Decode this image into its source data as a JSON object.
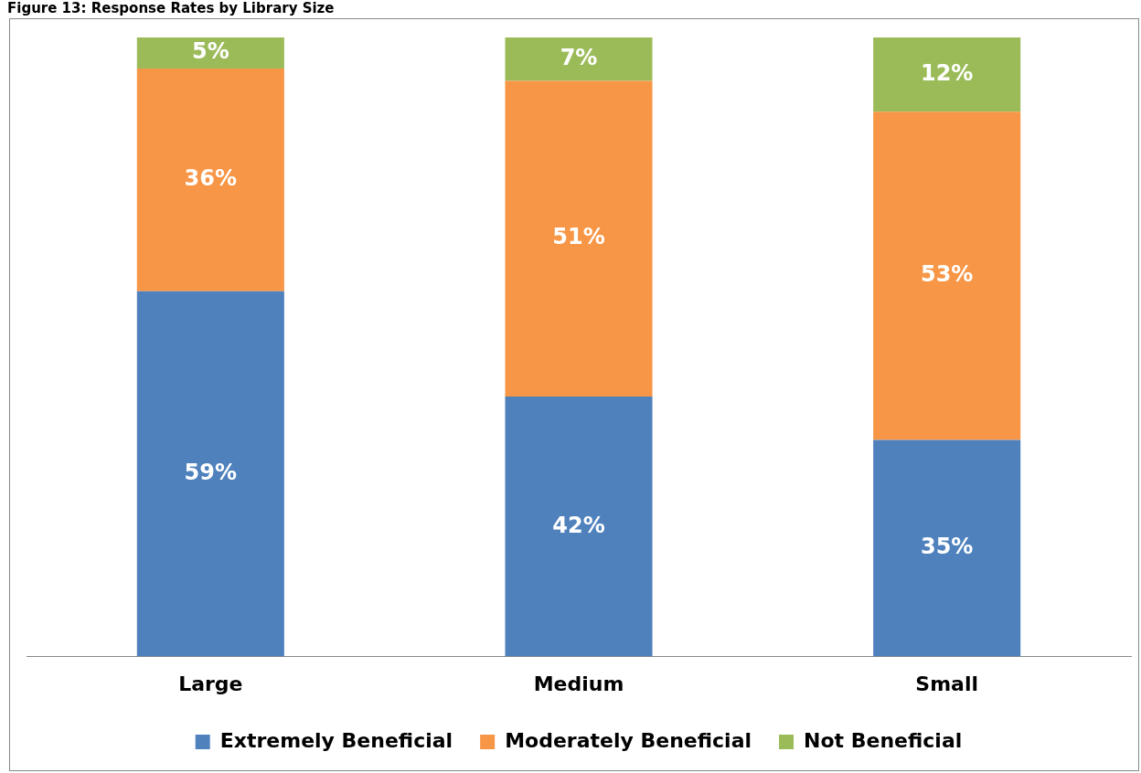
{
  "chart_data": {
    "type": "bar",
    "title": "Figure 13: Response Rates by Library Size",
    "categories": [
      "Large",
      "Medium",
      "Small"
    ],
    "stacked": true,
    "tick_labels": "x",
    "grid": false,
    "legend": "bottom",
    "series": [
      {
        "name": "Extremely Beneficial",
        "color": "#4f81bd",
        "values": [
          59,
          42,
          35
        ],
        "value_labels": [
          "59%",
          "42%",
          "35%"
        ]
      },
      {
        "name": "Moderately Beneficial",
        "color": "#f79646",
        "values": [
          36,
          51,
          53
        ],
        "value_labels": [
          "36%",
          "51%",
          "53%"
        ]
      },
      {
        "name": "Not Beneficial",
        "color": "#9bbb59",
        "values": [
          5,
          7,
          12
        ],
        "value_labels": [
          "5%",
          "7%",
          "12%"
        ]
      }
    ]
  }
}
